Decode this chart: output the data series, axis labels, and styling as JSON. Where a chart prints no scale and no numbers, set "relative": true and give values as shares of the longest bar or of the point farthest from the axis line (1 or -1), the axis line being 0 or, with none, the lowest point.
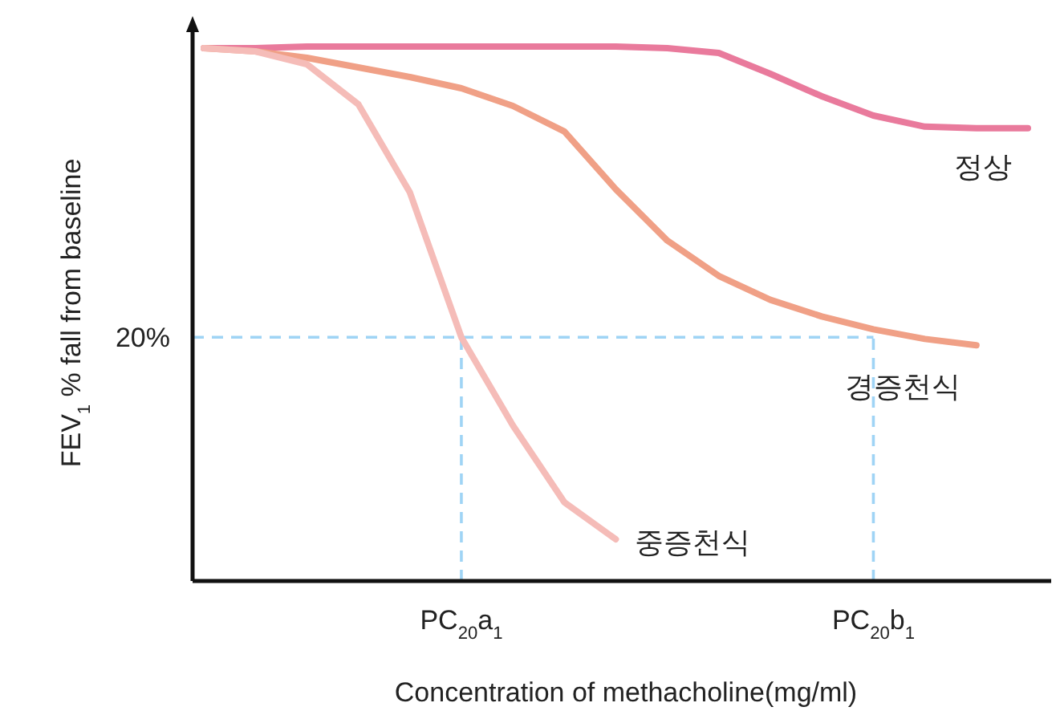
{
  "chart_data": {
    "type": "line",
    "relative": true,
    "xlabel": "Concentration of methacholine(mg/ml)",
    "ylabel": "FEV$_{1}$ % fall from baseline",
    "categories": [
      null,
      null,
      null,
      null,
      null,
      "PC$_{20}$a$_{1}$",
      null,
      null,
      null,
      null,
      null,
      null,
      null,
      "PC$_{20}$b$_{1}$",
      null,
      null,
      null
    ],
    "annotations": [
      "20%"
    ],
    "ref_lines": [
      {
        "axis": "y",
        "value": 0.456,
        "color": "#9fd4f5",
        "line_style": "dashed"
      },
      {
        "axis": "x",
        "value": "PC$_{20}$a$_{1}$",
        "color": "#9fd4f5",
        "line_style": "dashed"
      },
      {
        "axis": "x",
        "value": "PC$_{20}$b$_{1}$",
        "color": "#9fd4f5",
        "line_style": "dashed"
      }
    ],
    "series": [
      {
        "name": "정상",
        "color": "#e97a9c",
        "values": [
          0.997,
          0.997,
          1.0,
          1.0,
          1.0,
          1.0,
          1.0,
          1.0,
          1.0,
          0.997,
          0.988,
          0.949,
          0.907,
          0.871,
          0.85,
          0.847,
          0.847
        ]
      },
      {
        "name": "경증천식",
        "color": "#f0a086",
        "values": [
          0.997,
          0.991,
          0.979,
          0.961,
          0.943,
          0.922,
          0.889,
          0.841,
          0.733,
          0.637,
          0.571,
          0.526,
          0.495,
          0.471,
          0.453,
          0.441,
          null
        ]
      },
      {
        "name": "중증천식",
        "color": "#f5bcb8",
        "values": [
          0.997,
          0.991,
          0.967,
          0.892,
          0.727,
          0.456,
          0.291,
          0.147,
          0.078,
          null,
          null,
          null,
          null,
          null,
          null,
          null,
          null
        ]
      }
    ]
  }
}
